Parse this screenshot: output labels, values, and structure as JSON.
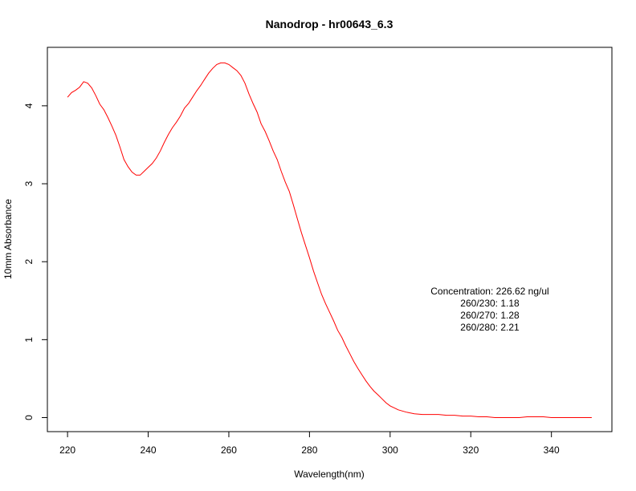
{
  "chart_data": {
    "type": "line",
    "title": "Nanodrop - hr00643_6.3",
    "xlabel": "Wavelength(nm)",
    "ylabel": "10mm Absorbance",
    "xlim": [
      215,
      355
    ],
    "ylim": [
      -0.18,
      4.75
    ],
    "xticks": [
      220,
      240,
      260,
      280,
      300,
      320,
      340
    ],
    "yticks": [
      0,
      1,
      2,
      3,
      4
    ],
    "grid": false,
    "line_color": "#ff0000",
    "series": [
      {
        "x": [
          220,
          221,
          222,
          223,
          224,
          225,
          226,
          227,
          228,
          229,
          230,
          231,
          232,
          233,
          234,
          235,
          236,
          237,
          238,
          239,
          240,
          241,
          242,
          243,
          244,
          245,
          246,
          247,
          248,
          249,
          250,
          251,
          252,
          253,
          254,
          255,
          256,
          257,
          258,
          259,
          260,
          261,
          262,
          263,
          264,
          265,
          266,
          267,
          268,
          269,
          270,
          271,
          272,
          273,
          274,
          275,
          276,
          277,
          278,
          279,
          280,
          281,
          282,
          283,
          284,
          285,
          286,
          287,
          288,
          289,
          290,
          291,
          292,
          293,
          294,
          295,
          296,
          297,
          298,
          299,
          300,
          302,
          304,
          306,
          308,
          310,
          312,
          314,
          316,
          318,
          320,
          322,
          324,
          326,
          328,
          330,
          332,
          334,
          336,
          338,
          340,
          342,
          344,
          346,
          348,
          350
        ],
        "y": [
          4.11,
          4.17,
          4.2,
          4.24,
          4.31,
          4.29,
          4.23,
          4.13,
          4.02,
          3.95,
          3.85,
          3.74,
          3.62,
          3.47,
          3.31,
          3.22,
          3.15,
          3.11,
          3.11,
          3.16,
          3.21,
          3.26,
          3.33,
          3.42,
          3.53,
          3.63,
          3.72,
          3.79,
          3.87,
          3.97,
          4.03,
          4.11,
          4.19,
          4.26,
          4.34,
          4.42,
          4.48,
          4.53,
          4.55,
          4.55,
          4.53,
          4.49,
          4.45,
          4.39,
          4.29,
          4.15,
          4.03,
          3.92,
          3.77,
          3.67,
          3.55,
          3.42,
          3.31,
          3.16,
          3.02,
          2.9,
          2.73,
          2.55,
          2.37,
          2.21,
          2.05,
          1.88,
          1.73,
          1.58,
          1.46,
          1.35,
          1.24,
          1.12,
          1.03,
          0.92,
          0.82,
          0.72,
          0.63,
          0.55,
          0.47,
          0.4,
          0.34,
          0.29,
          0.24,
          0.19,
          0.15,
          0.1,
          0.07,
          0.05,
          0.04,
          0.04,
          0.04,
          0.03,
          0.03,
          0.02,
          0.02,
          0.01,
          0.01,
          0.0,
          0.0,
          0.0,
          0.0,
          0.01,
          0.01,
          0.01,
          0.0,
          0.0,
          0.0,
          0.0,
          0.0,
          0.0
        ]
      }
    ],
    "annotations": [
      "Concentration: 226.62 ng/ul",
      "260/230: 1.18",
      "260/270: 1.28",
      "260/280: 2.21"
    ]
  }
}
